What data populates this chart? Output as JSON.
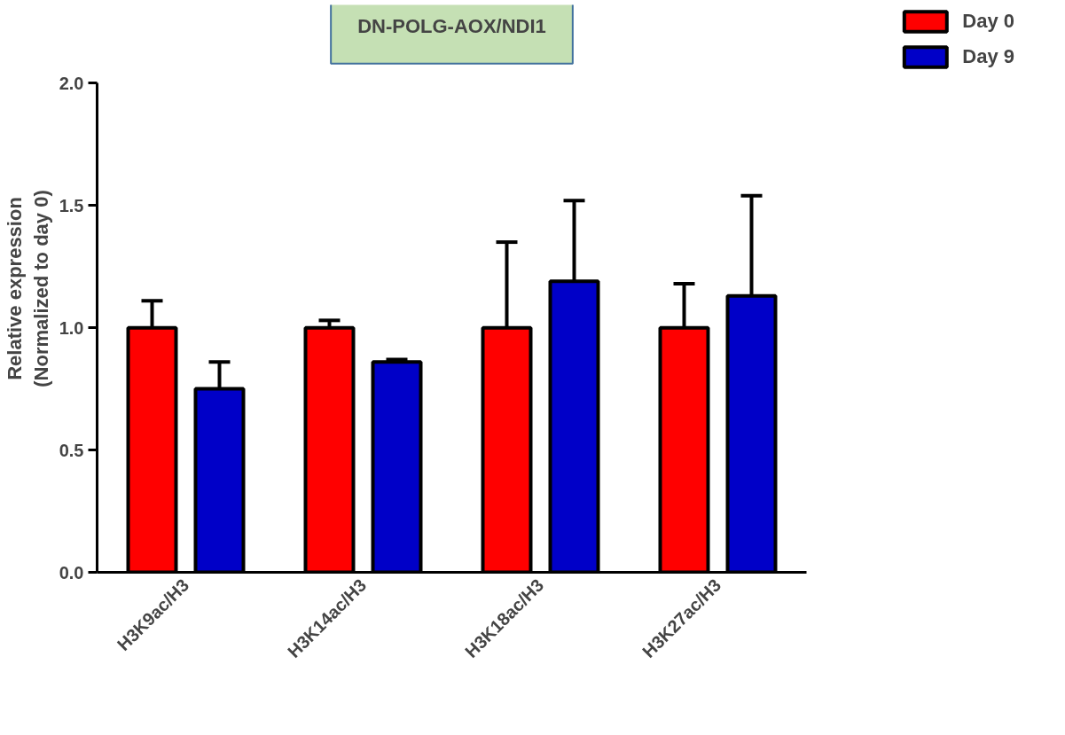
{
  "chart_data": {
    "type": "bar",
    "title": "DN-POLG-AOX/NDI1",
    "ylabel": "Relative expression\n(Normalized to day 0)",
    "categories": [
      "H3K9ac/H3",
      "H3K14ac/H3",
      "H3K18ac/H3",
      "H3K27ac/H3"
    ],
    "series": [
      {
        "name": "Day 0",
        "color": "#ff0000",
        "values": [
          1.0,
          1.0,
          1.0,
          1.0
        ],
        "errors": [
          [
            1.0,
            1.11
          ],
          [
            1.0,
            1.03
          ],
          [
            1.0,
            1.35
          ],
          [
            1.0,
            1.18
          ]
        ]
      },
      {
        "name": "Day 9",
        "color": "#0000c8",
        "values": [
          0.75,
          0.86,
          1.19,
          1.13
        ],
        "errors": [
          [
            0.75,
            0.86
          ],
          [
            0.86,
            0.87
          ],
          [
            1.19,
            1.52
          ],
          [
            1.13,
            1.54
          ]
        ]
      }
    ],
    "ylim": [
      0,
      2.0
    ],
    "yticks": [
      {
        "value": 0,
        "label": "0.0"
      },
      {
        "value": 0.5,
        "label": "0.5"
      },
      {
        "value": 1.0,
        "label": "1.0"
      },
      {
        "value": 1.5,
        "label": "1.5"
      },
      {
        "value": 2.0,
        "label": "2.0"
      }
    ],
    "grid": false,
    "legend": "top right"
  }
}
